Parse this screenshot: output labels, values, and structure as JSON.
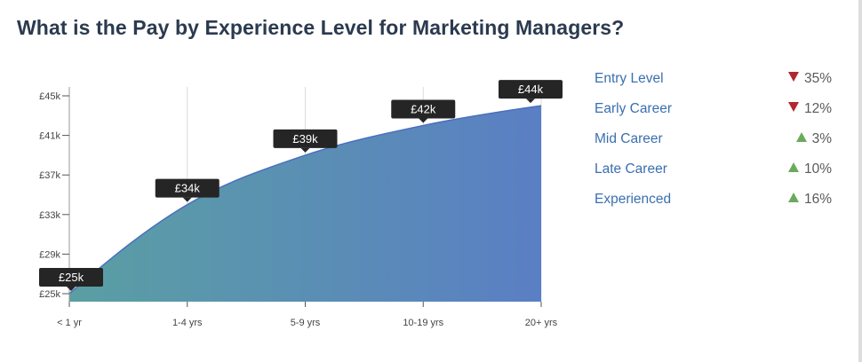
{
  "title": "What is the Pay by Experience Level for Marketing Managers?",
  "colors": {
    "area_start": "#5a9fa3",
    "area_end": "#5a7fc4",
    "line": "#4a6fbf",
    "label_bg": "#252525",
    "label_text": "#ffffff",
    "down": "#b3262d",
    "up": "#6aaa5e",
    "legend_text": "#3b6fb0"
  },
  "chart_data": {
    "type": "area",
    "categories": [
      "< 1 yr",
      "1-4 yrs",
      "5-9 yrs",
      "10-19 yrs",
      "20+ yrs"
    ],
    "values": [
      25,
      34,
      39,
      42,
      44
    ],
    "data_labels": [
      "£25k",
      "£34k",
      "£39k",
      "£42k",
      "£44k"
    ],
    "y_ticks": [
      {
        "value": 25,
        "label": "£25k"
      },
      {
        "value": 29,
        "label": "£29k"
      },
      {
        "value": 33,
        "label": "£33k"
      },
      {
        "value": 37,
        "label": "£37k"
      },
      {
        "value": 41,
        "label": "£41k"
      },
      {
        "value": 45,
        "label": "£45k"
      }
    ],
    "ylim": [
      25,
      45
    ],
    "xlabel": "",
    "ylabel": "",
    "grid": "vertical"
  },
  "legend": [
    {
      "label": "Entry Level",
      "direction": "down",
      "change": "35%"
    },
    {
      "label": "Early Career",
      "direction": "down",
      "change": "12%"
    },
    {
      "label": "Mid Career",
      "direction": "up",
      "change": "3%"
    },
    {
      "label": "Late Career",
      "direction": "up",
      "change": "10%"
    },
    {
      "label": "Experienced",
      "direction": "up",
      "change": "16%"
    }
  ]
}
